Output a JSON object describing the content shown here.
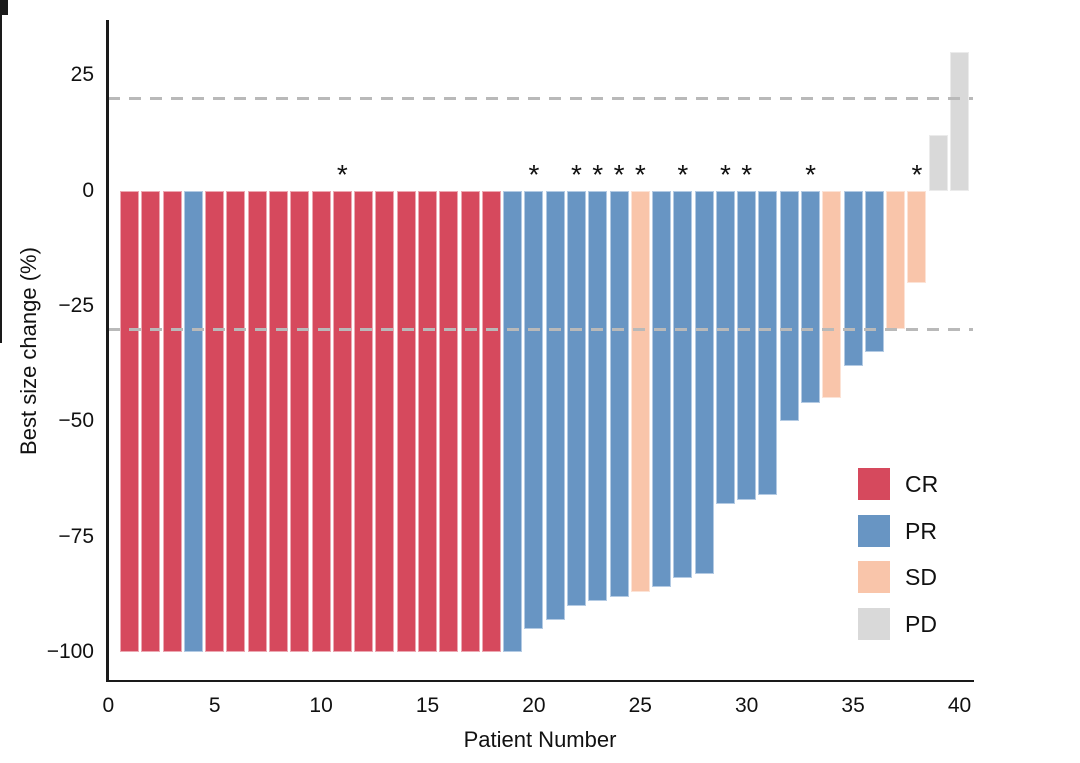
{
  "chart_data": {
    "type": "bar",
    "title": "",
    "xlabel": "Patient Number",
    "ylabel": "Best size change (%)",
    "xlim": [
      0,
      40.6
    ],
    "ylim": [
      -105,
      37
    ],
    "grid": false,
    "legend_position": "inside-right",
    "reference_lines": [
      20,
      -30
    ],
    "y_ticks": [
      {
        "v": 25,
        "label": "25"
      },
      {
        "v": 0,
        "label": "0"
      },
      {
        "v": -25,
        "label": "−25"
      },
      {
        "v": -50,
        "label": "−50"
      },
      {
        "v": -75,
        "label": "−75"
      },
      {
        "v": -100,
        "label": "−100"
      }
    ],
    "x_tick_minor_step": 1,
    "x_ticks_labeled": [
      {
        "v": 0,
        "label": "0"
      },
      {
        "v": 5,
        "label": "5"
      },
      {
        "v": 10,
        "label": "10"
      },
      {
        "v": 15,
        "label": "15"
      },
      {
        "v": 20,
        "label": "20"
      },
      {
        "v": 25,
        "label": "25"
      },
      {
        "v": 30,
        "label": "30"
      },
      {
        "v": 35,
        "label": "35"
      },
      {
        "v": 40,
        "label": "40"
      }
    ],
    "legend": [
      {
        "label": "CR",
        "color": "#D6495D"
      },
      {
        "label": "PR",
        "color": "#6895C3"
      },
      {
        "label": "SD",
        "color": "#F9C5AA"
      },
      {
        "label": "PD",
        "color": "#D9D9D9"
      }
    ],
    "patients": [
      {
        "n": 1,
        "value": -100,
        "response": "CR",
        "asterisk": false
      },
      {
        "n": 2,
        "value": -100,
        "response": "CR",
        "asterisk": false
      },
      {
        "n": 3,
        "value": -100,
        "response": "CR",
        "asterisk": false
      },
      {
        "n": 4,
        "value": -100,
        "response": "PR",
        "asterisk": false
      },
      {
        "n": 5,
        "value": -100,
        "response": "CR",
        "asterisk": false
      },
      {
        "n": 6,
        "value": -100,
        "response": "CR",
        "asterisk": false
      },
      {
        "n": 7,
        "value": -100,
        "response": "CR",
        "asterisk": false
      },
      {
        "n": 8,
        "value": -100,
        "response": "CR",
        "asterisk": false
      },
      {
        "n": 9,
        "value": -100,
        "response": "CR",
        "asterisk": false
      },
      {
        "n": 10,
        "value": -100,
        "response": "CR",
        "asterisk": false
      },
      {
        "n": 11,
        "value": -100,
        "response": "CR",
        "asterisk": true
      },
      {
        "n": 12,
        "value": -100,
        "response": "CR",
        "asterisk": false
      },
      {
        "n": 13,
        "value": -100,
        "response": "CR",
        "asterisk": false
      },
      {
        "n": 14,
        "value": -100,
        "response": "CR",
        "asterisk": false
      },
      {
        "n": 15,
        "value": -100,
        "response": "CR",
        "asterisk": false
      },
      {
        "n": 16,
        "value": -100,
        "response": "CR",
        "asterisk": false
      },
      {
        "n": 17,
        "value": -100,
        "response": "CR",
        "asterisk": false
      },
      {
        "n": 18,
        "value": -100,
        "response": "CR",
        "asterisk": false
      },
      {
        "n": 19,
        "value": -100,
        "response": "PR",
        "asterisk": false
      },
      {
        "n": 20,
        "value": -95,
        "response": "PR",
        "asterisk": true
      },
      {
        "n": 21,
        "value": -93,
        "response": "PR",
        "asterisk": false
      },
      {
        "n": 22,
        "value": -90,
        "response": "PR",
        "asterisk": true
      },
      {
        "n": 23,
        "value": -89,
        "response": "PR",
        "asterisk": true
      },
      {
        "n": 24,
        "value": -88,
        "response": "PR",
        "asterisk": true
      },
      {
        "n": 25,
        "value": -87,
        "response": "SD",
        "asterisk": true
      },
      {
        "n": 26,
        "value": -86,
        "response": "PR",
        "asterisk": false
      },
      {
        "n": 27,
        "value": -84,
        "response": "PR",
        "asterisk": true
      },
      {
        "n": 28,
        "value": -83,
        "response": "PR",
        "asterisk": false
      },
      {
        "n": 29,
        "value": -68,
        "response": "PR",
        "asterisk": true
      },
      {
        "n": 30,
        "value": -67,
        "response": "PR",
        "asterisk": true
      },
      {
        "n": 31,
        "value": -66,
        "response": "PR",
        "asterisk": false
      },
      {
        "n": 32,
        "value": -50,
        "response": "PR",
        "asterisk": false
      },
      {
        "n": 33,
        "value": -46,
        "response": "PR",
        "asterisk": true
      },
      {
        "n": 34,
        "value": -45,
        "response": "SD",
        "asterisk": false
      },
      {
        "n": 35,
        "value": -38,
        "response": "PR",
        "asterisk": false
      },
      {
        "n": 36,
        "value": -35,
        "response": "PR",
        "asterisk": false
      },
      {
        "n": 37,
        "value": -30,
        "response": "SD",
        "asterisk": false
      },
      {
        "n": 38,
        "value": -20,
        "response": "SD",
        "asterisk": true
      },
      {
        "n": 39,
        "value": 12,
        "response": "PD",
        "asterisk": false
      },
      {
        "n": 40,
        "value": 30,
        "response": "PD",
        "asterisk": false
      }
    ]
  },
  "style": {
    "palette": {
      "CR": "#D6495D",
      "PR": "#6895C3",
      "SD": "#F9C5AA",
      "PD": "#D9D9D9"
    },
    "border_palette": {
      "CR": "#ECA8B2",
      "PR": "#B3CAE3",
      "SD": "#FCE3D6",
      "PD": "#EBEBEB"
    },
    "dash_color": "#B9B9B9",
    "axis_color": "#1A1A1A"
  }
}
